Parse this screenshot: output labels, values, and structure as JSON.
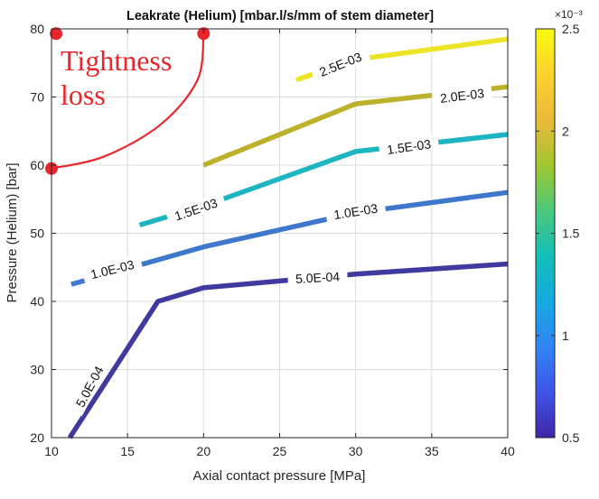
{
  "chart_data": {
    "type": "contour",
    "title": "Leakrate (Helium) [mbar.l/s/mm of stem diameter]",
    "xlabel": "Axial contact pressure [MPa]",
    "ylabel": "Pressure (Helium) [bar]",
    "xlim": [
      10,
      40
    ],
    "ylim": [
      20,
      80
    ],
    "xticks": [
      "10",
      "15",
      "20",
      "25",
      "30",
      "35",
      "40"
    ],
    "yticks": [
      "20",
      "30",
      "40",
      "50",
      "60",
      "70",
      "80"
    ],
    "grid": true,
    "colorbar": {
      "range": [
        0.5,
        2.5
      ],
      "ticks": [
        "0.5",
        "1",
        "1.5",
        "2",
        "2.5"
      ],
      "multiplier": "×10⁻³",
      "colormap": [
        "#3e26a8",
        "#3f54e9",
        "#2f85f5",
        "#14a9e0",
        "#12beb9",
        "#4bc979",
        "#a2c62e",
        "#ecb93a",
        "#fcd22d",
        "#f9fb0e"
      ]
    },
    "series": [
      {
        "label": "5.0E-04",
        "color": "#3f3aa0",
        "points": [
          [
            11.2,
            20
          ],
          [
            17,
            40
          ],
          [
            20,
            42
          ],
          [
            30,
            44
          ],
          [
            40,
            45.5
          ]
        ],
        "labels_at": [
          [
            12.5,
            27.5,
            -62
          ],
          [
            27.5,
            43.5,
            -3
          ]
        ]
      },
      {
        "label": "1.0E-03",
        "color": "#3d78cc",
        "points": [
          [
            11.3,
            42.5
          ],
          [
            20,
            48
          ],
          [
            30,
            53
          ],
          [
            40,
            56
          ]
        ],
        "labels_at": [
          [
            14,
            44.7,
            -14
          ],
          [
            30,
            53.2,
            -9
          ]
        ]
      },
      {
        "label": "1.5E-03",
        "color": "#1cb5c0",
        "points": [
          [
            15.8,
            51.2
          ],
          [
            20,
            54
          ],
          [
            30,
            62
          ],
          [
            40,
            64.5
          ]
        ],
        "labels_at": [
          [
            19.5,
            53.5,
            -19
          ],
          [
            33.5,
            62.7,
            -8
          ]
        ]
      },
      {
        "label": "2.0E-03",
        "color": "#bdb12c",
        "points": [
          [
            20,
            60
          ],
          [
            30,
            69
          ],
          [
            40,
            71.5
          ]
        ],
        "labels_at": [
          [
            37,
            70.2,
            -7
          ]
        ]
      },
      {
        "label": "2.5E-03",
        "color": "#ede428",
        "points": [
          [
            26.1,
            72.5
          ],
          [
            30,
            75.5
          ],
          [
            40,
            78.5
          ]
        ],
        "labels_at": [
          [
            29,
            74.8,
            -22
          ]
        ]
      }
    ],
    "annotation": {
      "text_line1": "Tightness",
      "text_line2": "loss",
      "color": "#e8262b",
      "arc": [
        [
          10,
          59.5
        ],
        [
          13.5,
          61.3
        ],
        [
          17.2,
          66
        ],
        [
          19.6,
          72.5
        ],
        [
          20,
          79.3
        ]
      ],
      "markers": [
        [
          10,
          59.5
        ],
        [
          20,
          79.3
        ],
        [
          10.3,
          79.3
        ]
      ]
    }
  }
}
